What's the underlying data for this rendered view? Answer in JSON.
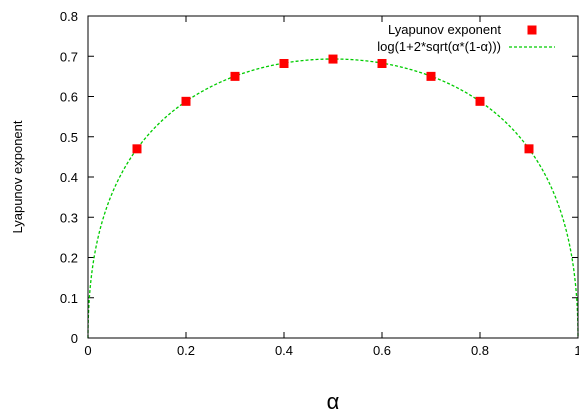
{
  "chart_data": {
    "type": "scatter",
    "title": "",
    "xlabel": "α",
    "ylabel": "Lyapunov exponent",
    "xlim": [
      0,
      1
    ],
    "ylim": [
      0,
      0.8
    ],
    "x_ticks": [
      "0",
      "0.2",
      "0.4",
      "0.6",
      "0.8",
      "1"
    ],
    "y_ticks": [
      "0",
      "0.1",
      "0.2",
      "0.3",
      "0.4",
      "0.5",
      "0.6",
      "0.7",
      "0.8"
    ],
    "grid": false,
    "legend_position": "top-right",
    "series": [
      {
        "name": "Lyapunov exponent",
        "kind": "points",
        "marker": "square",
        "color": "#ff0000",
        "x": [
          0.1,
          0.2,
          0.3,
          0.4,
          0.5,
          0.6,
          0.7,
          0.8,
          0.9
        ],
        "y": [
          0.47,
          0.588,
          0.65,
          0.682,
          0.693,
          0.682,
          0.65,
          0.588,
          0.47
        ]
      },
      {
        "name": "log(1+2*sqrt(α*(1-α)))",
        "kind": "curve",
        "line_style": "dashed",
        "color": "#00cc00",
        "function": "log(1+2*sqrt(α*(1-α)))"
      }
    ]
  }
}
